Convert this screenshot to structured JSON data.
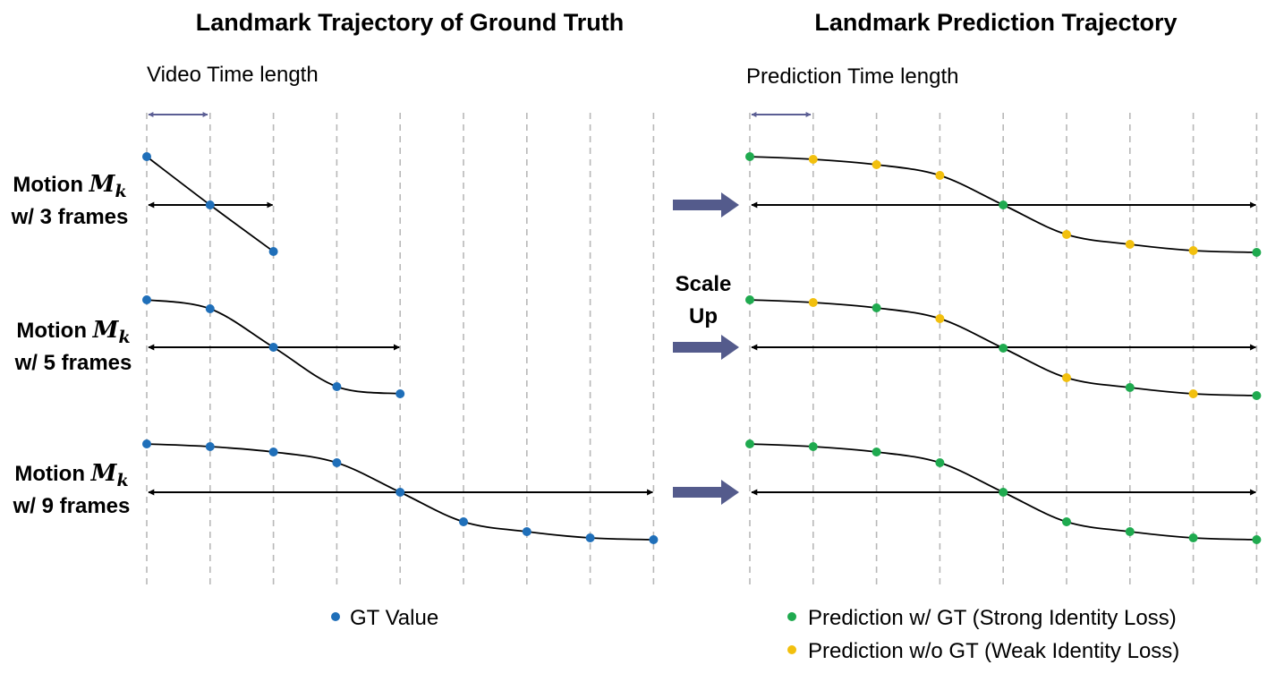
{
  "left_panel": {
    "title": "Landmark Trajectory of Ground Truth",
    "subtitle": "Video Time length"
  },
  "right_panel": {
    "title": "Landmark Prediction Trajectory",
    "subtitle": "Prediction Time length"
  },
  "scale_up": {
    "line1": "Scale",
    "line2": "Up"
  },
  "rows": [
    {
      "label_line1_prefix": "Motion ",
      "label_sym_main": "M",
      "label_sym_sub": "k",
      "label_line2": "w/ 3 frames",
      "gt_frames": 3,
      "pred_types": [
        "gt",
        "weak",
        "weak",
        "weak",
        "gt",
        "weak",
        "weak",
        "weak",
        "gt"
      ]
    },
    {
      "label_line1_prefix": "Motion ",
      "label_sym_main": "M",
      "label_sym_sub": "k",
      "label_line2": "w/ 5 frames",
      "gt_frames": 5,
      "pred_types": [
        "gt",
        "weak",
        "gt",
        "weak",
        "gt",
        "weak",
        "gt",
        "weak",
        "gt"
      ]
    },
    {
      "label_line1_prefix": "Motion ",
      "label_sym_main": "M",
      "label_sym_sub": "k",
      "label_line2": "w/ 9 frames",
      "gt_frames": 9,
      "pred_types": [
        "gt",
        "gt",
        "gt",
        "gt",
        "gt",
        "gt",
        "gt",
        "gt",
        "gt"
      ]
    }
  ],
  "legend": {
    "gt_value": "GT Value",
    "pred_strong": "Prediction w/ GT (Strong Identity Loss)",
    "pred_weak": "Prediction w/o GT (Weak Identity Loss)"
  },
  "colors": {
    "gt_point": "#1f6fb9",
    "pred_strong": "#1faa4f",
    "pred_weak": "#f2c00e",
    "big_arrow": "#545b8c",
    "span_arrow": "#5b5e94",
    "grid": "#b8b8b8"
  }
}
